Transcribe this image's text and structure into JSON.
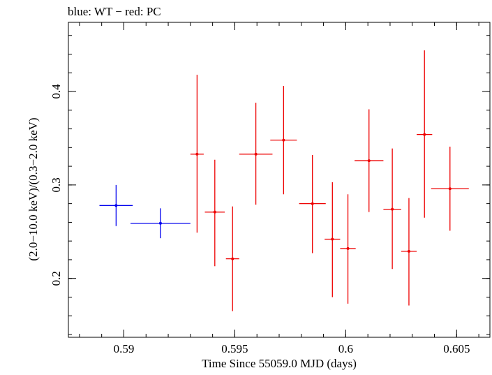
{
  "chart_data": {
    "type": "scatter",
    "title": "blue: WT − red: PC",
    "xlabel": "Time Since 55059.0 MJD (days)",
    "ylabel": "(2.0−10.0 keV)/(0.3−2.0 keV)",
    "xlim": [
      0.5875,
      0.6065
    ],
    "ylim": [
      0.137,
      0.474
    ],
    "x_ticks": [
      {
        "value": 0.59,
        "label": "0.59"
      },
      {
        "value": 0.595,
        "label": "0.595"
      },
      {
        "value": 0.6,
        "label": "0.6"
      },
      {
        "value": 0.605,
        "label": "0.605"
      }
    ],
    "y_ticks": [
      {
        "value": 0.2,
        "label": "0.2"
      },
      {
        "value": 0.3,
        "label": "0.3"
      },
      {
        "value": 0.4,
        "label": "0.4"
      }
    ],
    "x_minor_step": 0.001,
    "y_minor_step": 0.02,
    "grid": false,
    "series": [
      {
        "name": "WT",
        "color": "#0000ee",
        "points": [
          {
            "x": 0.58965,
            "xerr": 0.00075,
            "y": 0.278,
            "ylo": 0.256,
            "yhi": 0.3
          },
          {
            "x": 0.59165,
            "xerr": 0.00135,
            "y": 0.259,
            "ylo": 0.243,
            "yhi": 0.275
          }
        ]
      },
      {
        "name": "PC",
        "color": "#ee0000",
        "points": [
          {
            "x": 0.5933,
            "xerr": 0.0003,
            "y": 0.333,
            "ylo": 0.249,
            "yhi": 0.418
          },
          {
            "x": 0.5941,
            "xerr": 0.00045,
            "y": 0.271,
            "ylo": 0.213,
            "yhi": 0.327
          },
          {
            "x": 0.5949,
            "xerr": 0.0003,
            "y": 0.221,
            "ylo": 0.165,
            "yhi": 0.277
          },
          {
            "x": 0.59595,
            "xerr": 0.00075,
            "y": 0.333,
            "ylo": 0.279,
            "yhi": 0.388
          },
          {
            "x": 0.5972,
            "xerr": 0.0006,
            "y": 0.348,
            "ylo": 0.29,
            "yhi": 0.406
          },
          {
            "x": 0.5985,
            "xerr": 0.0006,
            "y": 0.28,
            "ylo": 0.227,
            "yhi": 0.332
          },
          {
            "x": 0.5994,
            "xerr": 0.00035,
            "y": 0.242,
            "ylo": 0.18,
            "yhi": 0.303
          },
          {
            "x": 0.6001,
            "xerr": 0.00035,
            "y": 0.232,
            "ylo": 0.173,
            "yhi": 0.29
          },
          {
            "x": 0.60105,
            "xerr": 0.00065,
            "y": 0.326,
            "ylo": 0.271,
            "yhi": 0.381
          },
          {
            "x": 0.6021,
            "xerr": 0.0004,
            "y": 0.274,
            "ylo": 0.21,
            "yhi": 0.339
          },
          {
            "x": 0.60285,
            "xerr": 0.00035,
            "y": 0.229,
            "ylo": 0.171,
            "yhi": 0.286
          },
          {
            "x": 0.60355,
            "xerr": 0.00035,
            "y": 0.354,
            "ylo": 0.265,
            "yhi": 0.444
          },
          {
            "x": 0.6047,
            "xerr": 0.00085,
            "y": 0.296,
            "ylo": 0.251,
            "yhi": 0.341
          }
        ]
      }
    ]
  }
}
